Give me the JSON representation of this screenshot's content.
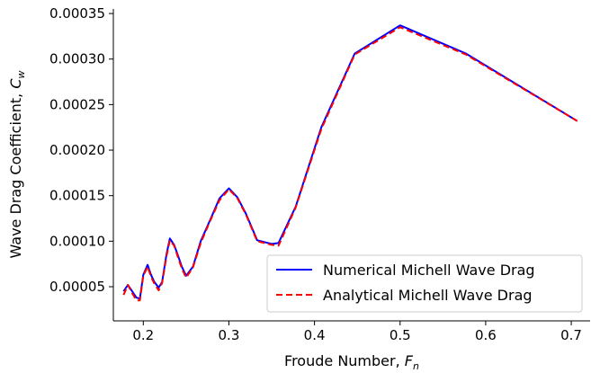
{
  "chart_data": {
    "type": "line",
    "xlabel": "Froude Number, ",
    "xlabel_symbol": "F",
    "xlabel_sub": "n",
    "ylabel": "Wave Drag Coefficient, ",
    "ylabel_symbol": "C",
    "ylabel_sub": "w",
    "xlim": [
      0.165,
      0.722
    ],
    "ylim": [
      1.25e-05,
      0.000355
    ],
    "xticks": [
      0.2,
      0.3,
      0.4,
      0.5,
      0.6,
      0.7
    ],
    "xtick_labels": [
      "0.2",
      "0.3",
      "0.4",
      "0.5",
      "0.6",
      "0.7"
    ],
    "yticks": [
      5e-05,
      0.0001,
      0.00015,
      0.0002,
      0.00025,
      0.0003,
      0.00035
    ],
    "ytick_labels": [
      "0.00005",
      "0.00010",
      "0.00015",
      "0.00020",
      "0.00025",
      "0.00030",
      "0.00035"
    ],
    "grid": false,
    "legend_position": "lower-right",
    "series": [
      {
        "name": "Numerical Michell Wave Drag",
        "color": "#0000ff",
        "style": "solid",
        "x": [
          0.177,
          0.182,
          0.187,
          0.192,
          0.196,
          0.2,
          0.205,
          0.209,
          0.213,
          0.218,
          0.222,
          0.227,
          0.231,
          0.236,
          0.241,
          0.245,
          0.25,
          0.258,
          0.267,
          0.278,
          0.289,
          0.3,
          0.31,
          0.32,
          0.333,
          0.35,
          0.358,
          0.378,
          0.408,
          0.447,
          0.5,
          0.577,
          0.707
        ],
        "y": [
          4.5e-05,
          5.2e-05,
          4.5e-05,
          3.8e-05,
          3.7e-05,
          6.3e-05,
          7.4e-05,
          6.3e-05,
          5.5e-05,
          4.9e-05,
          5.5e-05,
          8.5e-05,
          0.000103,
          9.6e-05,
          8.3e-05,
          7.2e-05,
          6.2e-05,
          7.2e-05,
          0.0001,
          0.000123,
          0.000147,
          0.000158,
          0.000148,
          0.00013,
          0.000101,
          9.7e-05,
          9.8e-05,
          0.000138,
          0.000225,
          0.000306,
          0.000337,
          0.000306,
          0.000232
        ]
      },
      {
        "name": "Analytical Michell Wave Drag",
        "color": "#ff0000",
        "style": "dashed",
        "x": [
          0.177,
          0.182,
          0.187,
          0.192,
          0.196,
          0.2,
          0.205,
          0.209,
          0.213,
          0.218,
          0.222,
          0.227,
          0.231,
          0.236,
          0.241,
          0.245,
          0.25,
          0.258,
          0.267,
          0.278,
          0.289,
          0.3,
          0.31,
          0.32,
          0.333,
          0.35,
          0.358,
          0.378,
          0.408,
          0.447,
          0.5,
          0.577,
          0.707
        ],
        "y": [
          4.1e-05,
          5.2e-05,
          4.3e-05,
          3.5e-05,
          3.5e-05,
          6.2e-05,
          7.2e-05,
          6.1e-05,
          5.3e-05,
          4.6e-05,
          5.4e-05,
          8.3e-05,
          0.000101,
          9.5e-05,
          8.1e-05,
          7e-05,
          6e-05,
          7.1e-05,
          9.8e-05,
          0.000122,
          0.000145,
          0.000157,
          0.000147,
          0.000129,
          0.0001,
          9.6e-05,
          9.5e-05,
          0.000137,
          0.000223,
          0.000305,
          0.000335,
          0.000305,
          0.000232
        ]
      }
    ]
  }
}
